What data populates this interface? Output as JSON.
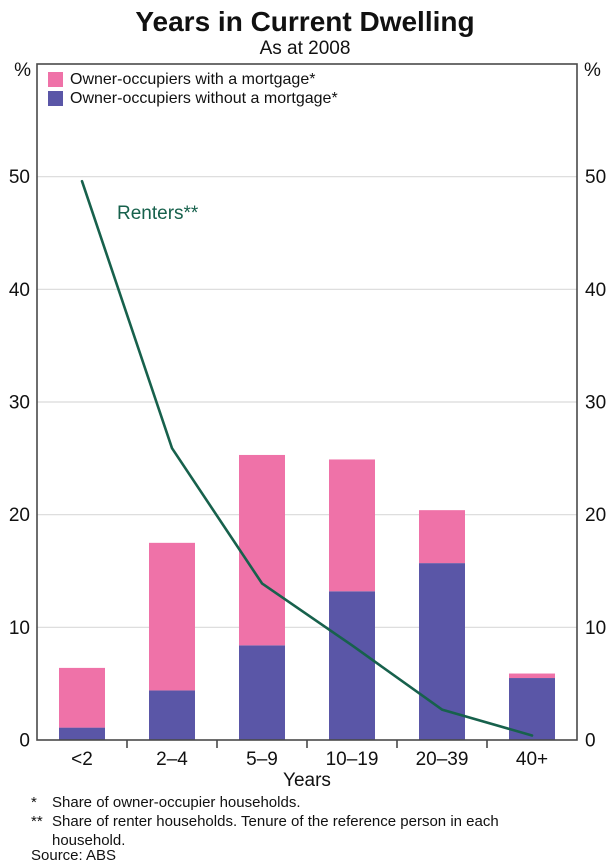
{
  "header": {
    "title": "Years in Current Dwelling",
    "subtitle": "As at 2008"
  },
  "legend": [
    {
      "label": "Owner-occupiers with a mortgage*",
      "color": "#ef72a8"
    },
    {
      "label": "Owner-occupiers without a mortgage*",
      "color": "#5a56a7"
    }
  ],
  "annotations": {
    "line_label": "Renters**"
  },
  "axes": {
    "y_left_unit": "%",
    "y_right_unit": "%",
    "x_title": "Years"
  },
  "chart_data": {
    "type": "bar",
    "stacked": true,
    "title": "Years in Current Dwelling",
    "subtitle": "As at 2008",
    "categories": [
      "<2",
      "2–4",
      "5–9",
      "10–19",
      "20–39",
      "40+"
    ],
    "series": [
      {
        "name": "Owner-occupiers without a mortgage*",
        "color": "#5a56a7",
        "values": [
          1.1,
          4.4,
          8.4,
          13.2,
          15.7,
          5.5
        ]
      },
      {
        "name": "Owner-occupiers with a mortgage*",
        "color": "#ef72a8",
        "values": [
          5.3,
          13.1,
          16.9,
          11.7,
          4.7,
          0.4
        ]
      }
    ],
    "line_series": {
      "name": "Renters**",
      "color": "#17614c",
      "values": [
        49.6,
        25.9,
        13.9,
        8.4,
        2.7,
        0.4
      ]
    },
    "xlabel": "Years",
    "ylabel": "%",
    "ylim": [
      0,
      60
    ],
    "yticks": [
      0,
      10,
      20,
      30,
      40,
      50
    ],
    "grid": true,
    "legend_position": "top-left-inside"
  },
  "footnotes": [
    {
      "marker": "*",
      "text": "Share of owner-occupier households."
    },
    {
      "marker": "**",
      "text": "Share of renter households. Tenure of the reference person in each household."
    }
  ],
  "source": "Source: ABS",
  "colors": {
    "pink": "#ef72a8",
    "purple": "#5a56a7",
    "green": "#17614c",
    "grid": "#d9d9d9",
    "frame": "#4a4a4a",
    "text": "#111111"
  }
}
